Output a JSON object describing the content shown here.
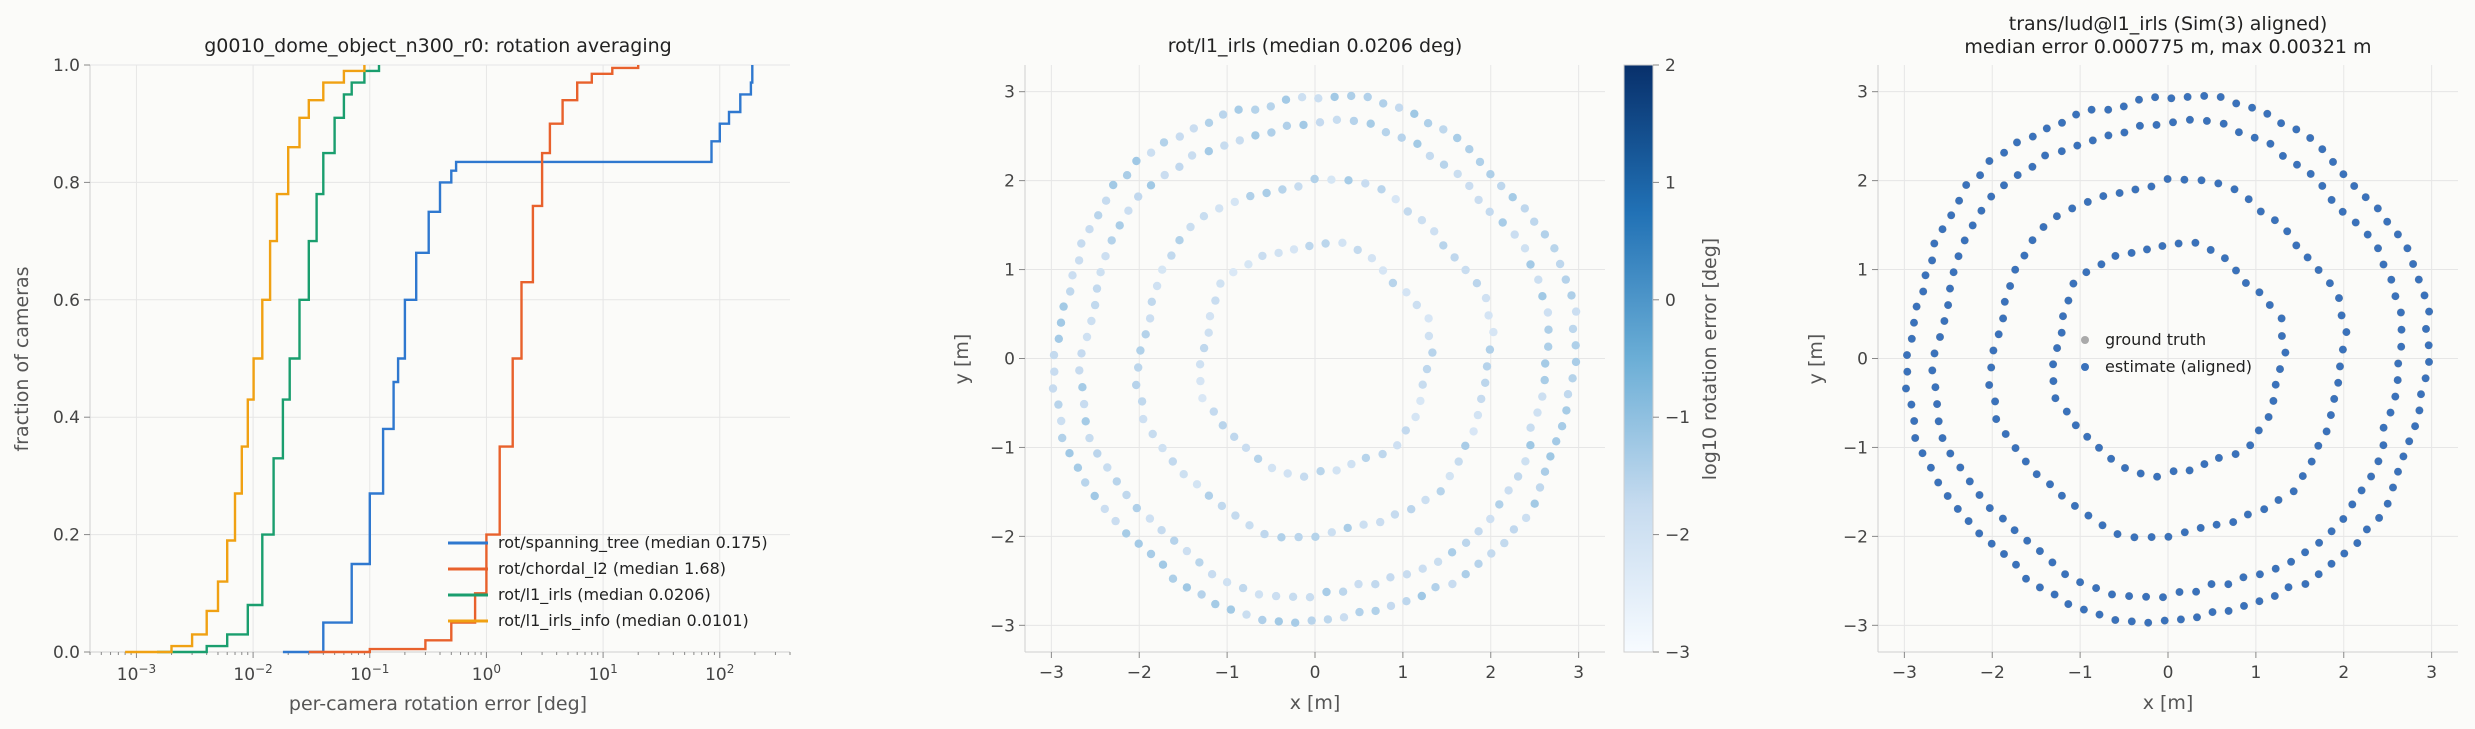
{
  "chart_data": [
    {
      "type": "line",
      "subtype": "ecdf",
      "title": "g0010_dome_object_n300_r0: rotation averaging",
      "xlabel": "per-camera rotation error [deg]",
      "ylabel": "fraction of cameras",
      "xscale": "log",
      "xlim": [
        0.0004,
        400
      ],
      "ylim": [
        0,
        1
      ],
      "xticks": [
        0.001,
        0.01,
        0.1,
        1,
        10,
        100
      ],
      "xtick_labels": [
        {
          "b": "10",
          "e": "−3"
        },
        {
          "b": "10",
          "e": "−2"
        },
        {
          "b": "10",
          "e": "−1"
        },
        {
          "b": "10",
          "e": "0"
        },
        {
          "b": "10",
          "e": "1"
        },
        {
          "b": "10",
          "e": "2"
        }
      ],
      "yticks": [
        0,
        0.2,
        0.4,
        0.6,
        0.8,
        1.0
      ],
      "ytick_labels": [
        "0.0",
        "0.2",
        "0.4",
        "0.6",
        "0.8",
        "1.0"
      ],
      "grid": true,
      "legend_position": "lower-right",
      "series": [
        {
          "name": "rot/spanning_tree (median 0.175)",
          "color": "#2f78cf",
          "x": [
            0.018,
            0.04,
            0.07,
            0.1,
            0.13,
            0.16,
            0.175,
            0.2,
            0.25,
            0.32,
            0.4,
            0.5,
            0.55,
            1,
            10,
            70,
            85,
            100,
            120,
            150,
            185,
            190
          ],
          "y": [
            0,
            0.05,
            0.15,
            0.27,
            0.38,
            0.46,
            0.5,
            0.6,
            0.68,
            0.75,
            0.8,
            0.82,
            0.835,
            0.835,
            0.835,
            0.835,
            0.87,
            0.9,
            0.92,
            0.95,
            0.97,
            1.0
          ]
        },
        {
          "name": "rot/chordal_l2 (median 1.68)",
          "color": "#e8612c",
          "x": [
            0.03,
            0.1,
            0.3,
            0.5,
            0.8,
            1.0,
            1.3,
            1.68,
            2.0,
            2.5,
            3.0,
            3.5,
            4.5,
            6,
            8,
            12,
            20
          ],
          "y": [
            0,
            0.005,
            0.02,
            0.05,
            0.1,
            0.2,
            0.35,
            0.5,
            0.63,
            0.76,
            0.85,
            0.9,
            0.94,
            0.97,
            0.985,
            0.995,
            1.0
          ]
        },
        {
          "name": "rot/l1_irls (median 0.0206)",
          "color": "#1a9e6e",
          "x": [
            0.0015,
            0.004,
            0.006,
            0.009,
            0.012,
            0.015,
            0.018,
            0.0206,
            0.025,
            0.03,
            0.035,
            0.04,
            0.05,
            0.06,
            0.07,
            0.09,
            0.12
          ],
          "y": [
            0,
            0.01,
            0.03,
            0.08,
            0.2,
            0.33,
            0.43,
            0.5,
            0.6,
            0.7,
            0.78,
            0.85,
            0.91,
            0.95,
            0.97,
            0.99,
            1.0
          ]
        },
        {
          "name": "rot/l1_irls_info (median 0.0101)",
          "color": "#f0a113",
          "x": [
            0.0008,
            0.002,
            0.003,
            0.004,
            0.005,
            0.006,
            0.007,
            0.008,
            0.009,
            0.0101,
            0.012,
            0.014,
            0.016,
            0.02,
            0.025,
            0.03,
            0.04,
            0.06,
            0.09
          ],
          "y": [
            0,
            0.01,
            0.03,
            0.07,
            0.12,
            0.19,
            0.27,
            0.35,
            0.43,
            0.5,
            0.6,
            0.7,
            0.78,
            0.86,
            0.91,
            0.94,
            0.97,
            0.99,
            1.0
          ]
        }
      ]
    },
    {
      "type": "scatter",
      "title": "rot/l1_irls (median 0.0206 deg)",
      "xlabel": "x [m]",
      "ylabel": "y [m]",
      "xlim": [
        -3.3,
        3.3
      ],
      "ylim": [
        -3.3,
        3.3
      ],
      "xticks": [
        -3,
        -2,
        -1,
        0,
        1,
        2,
        3
      ],
      "yticks": [
        -3,
        -2,
        -1,
        0,
        1,
        2,
        3
      ],
      "tick_labels": [
        "−3",
        "−2",
        "−1",
        "0",
        "1",
        "2",
        "3"
      ],
      "grid": true,
      "point_layout": "points lie on four concentric rings (radius ~1.3, ~2.0, ~2.65, ~2.95), about 300 points total",
      "rings": [
        {
          "radius": 1.3,
          "points": 44,
          "value_range": [
            -2.3,
            -1.5
          ]
        },
        {
          "radius": 2.0,
          "points": 66,
          "value_range": [
            -2.2,
            -1.3
          ]
        },
        {
          "radius": 2.65,
          "points": 88,
          "value_range": [
            -2.0,
            -1.2
          ]
        },
        {
          "radius": 2.95,
          "points": 100,
          "value_range": [
            -1.9,
            -1.2
          ]
        }
      ],
      "color_scale": {
        "label": "log10 rotation error [deg]",
        "range": [
          -3,
          2
        ],
        "ticks": [
          2,
          1,
          0,
          -1,
          -2,
          -3
        ],
        "tick_labels": [
          "2",
          "1",
          "0",
          "−1",
          "−2",
          "−3"
        ],
        "colors": [
          "#f7fbff",
          "#c6dbef",
          "#6baed6",
          "#2171b5",
          "#08306b"
        ]
      }
    },
    {
      "type": "scatter",
      "title": "trans/lud@l1_irls (Sim(3) aligned)",
      "subtitle": "median error 0.000775 m, max 0.00321 m",
      "xlabel": "x [m]",
      "ylabel": "y [m]",
      "xlim": [
        -3.3,
        3.3
      ],
      "ylim": [
        -3.3,
        3.3
      ],
      "xticks": [
        -3,
        -2,
        -1,
        0,
        1,
        2,
        3
      ],
      "yticks": [
        -3,
        -2,
        -1,
        0,
        1,
        2,
        3
      ],
      "tick_labels": [
        "−3",
        "−2",
        "−1",
        "0",
        "1",
        "2",
        "3"
      ],
      "grid": true,
      "legend_position": "center",
      "series": [
        {
          "name": "ground truth",
          "color": "#aaaaaa",
          "rings": [
            1.3,
            2.0,
            2.65,
            2.95
          ],
          "points_per_ring": [
            44,
            66,
            88,
            100
          ]
        },
        {
          "name": "estimate (aligned)",
          "color": "#3a72bb",
          "rings": [
            1.3,
            2.0,
            2.65,
            2.95
          ],
          "points_per_ring": [
            44,
            66,
            88,
            100
          ]
        }
      ]
    }
  ]
}
